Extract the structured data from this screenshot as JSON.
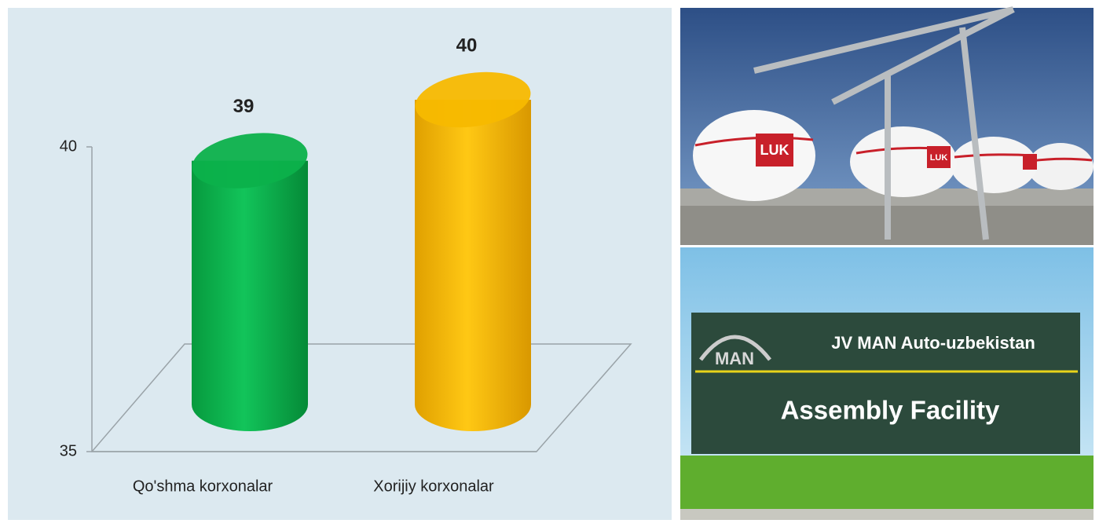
{
  "chart_data": {
    "type": "bar",
    "categories": [
      "Qo'shma korxonalar",
      "Xorijiy korxonalar"
    ],
    "values": [
      39,
      40
    ],
    "colors": [
      "#0cb14b",
      "#f7b900"
    ],
    "ylim": [
      35,
      40
    ],
    "yticks": [
      35,
      40
    ]
  },
  "photos": {
    "tank_logo": "LUK",
    "sign_logo": "MAN",
    "sign_company": "JV MAN Auto-uzbekistan",
    "sign_title": "Assembly Facility"
  }
}
